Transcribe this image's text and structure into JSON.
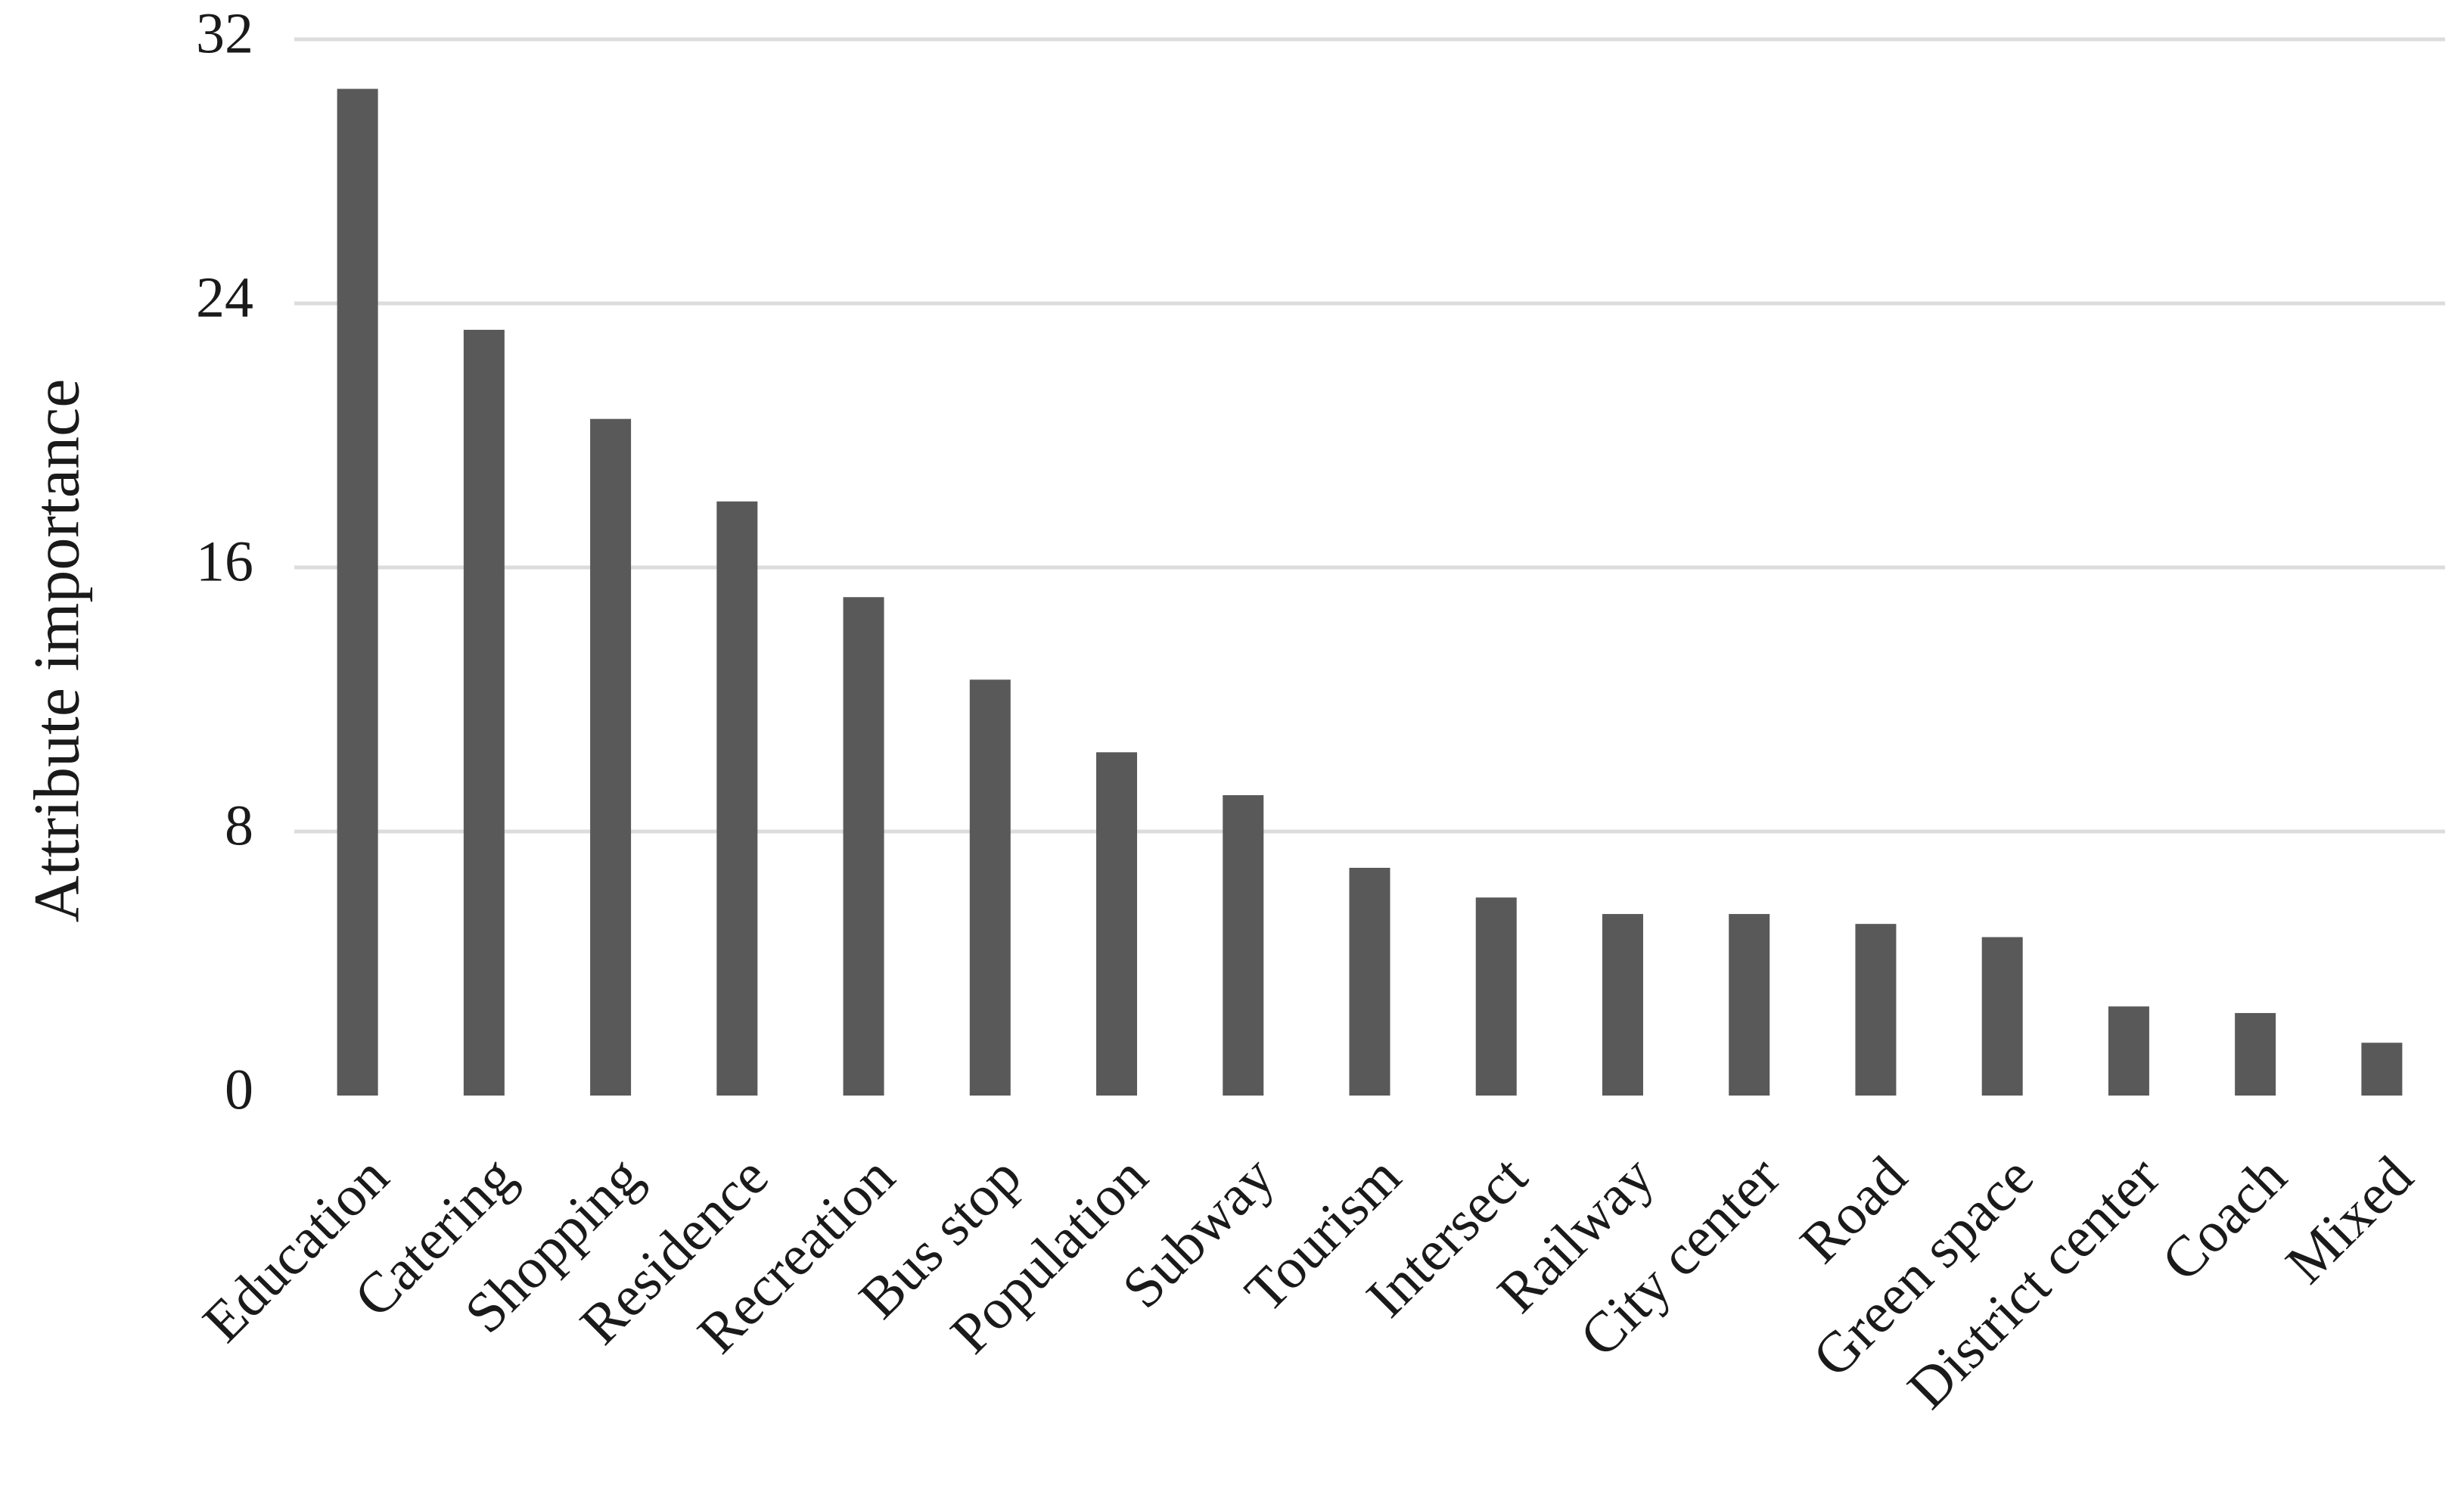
{
  "chart_data": {
    "type": "bar",
    "y_label": "Attribute importance",
    "categories": [
      "Education",
      "Catering",
      "Shopping",
      "Residence",
      "Recreation",
      "Bus stop",
      "Population",
      "Subway",
      "Tourism",
      "Intersect",
      "Railway",
      "City center",
      "Road",
      "Green space",
      "District center",
      "Coach",
      "Mixed"
    ],
    "values": [
      30.5,
      23.2,
      20.5,
      18.0,
      15.1,
      12.6,
      10.4,
      9.1,
      6.9,
      6.0,
      5.5,
      5.5,
      5.2,
      4.8,
      2.7,
      2.5,
      1.6
    ],
    "color": "#595959",
    "ylim": [
      0,
      32
    ],
    "yticks": [
      0,
      8,
      16,
      24,
      32
    ],
    "grid": true
  }
}
